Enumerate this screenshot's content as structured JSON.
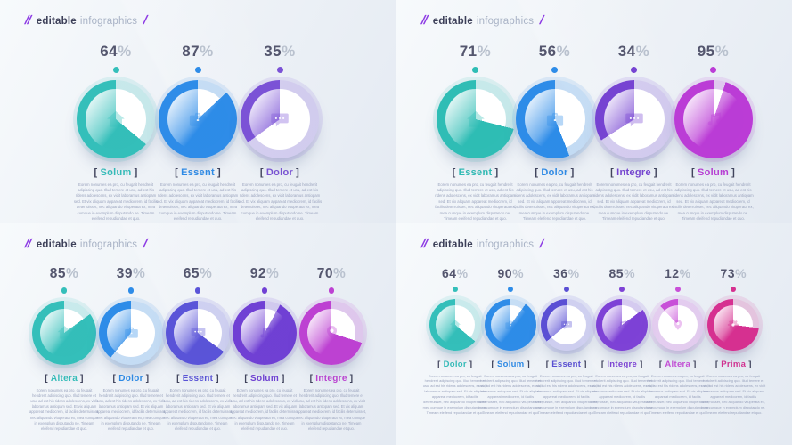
{
  "page": {
    "slash_decor_left": "//",
    "brand_bold": "editable",
    "brand_light": "infographics",
    "slash_decor_right": "/",
    "accent_purple": "#8d3be4",
    "background": "#edf1f7"
  },
  "percent_sign": "%",
  "bracket_open": "[",
  "bracket_close": "]",
  "body_placeholder": "Eorem nonumes ea pro, cu feugait hendrerit adipiscing quo. Illud temere et usu, ad est his ridens adolescens, ex vidit laboramus antiopam sed. Et vix aliquam appareat mediocrem, id facilis deterruisset, nec aliquando vituperata ex, mea cumque in exemplum disputando ne. Timeam eleifend repudiandae et quo.",
  "chart_data": [
    {
      "type": "donut",
      "position": "top-left",
      "title": "editable infographics",
      "unit": "%",
      "items": [
        {
          "label": "Solum",
          "value": 64,
          "color": "#34bfba",
          "icon": "home-icon"
        },
        {
          "label": "Essent",
          "value": 87,
          "color": "#2e8ce8",
          "icon": "briefcase-icon"
        },
        {
          "label": "Dolor",
          "value": 35,
          "color": "#7b52d6",
          "icon": "chat-icon"
        }
      ]
    },
    {
      "type": "donut",
      "position": "top-right",
      "title": "editable infographics",
      "unit": "%",
      "items": [
        {
          "label": "Essent",
          "value": 71,
          "color": "#2fbdb5",
          "icon": "home-icon"
        },
        {
          "label": "Dolor",
          "value": 56,
          "color": "#2e8ce8",
          "icon": "briefcase-icon"
        },
        {
          "label": "Integre",
          "value": 34,
          "color": "#7643d2",
          "icon": "chat-icon"
        },
        {
          "label": "Solum",
          "value": 95,
          "color": "#bb3cd6",
          "icon": "music-icon"
        }
      ]
    },
    {
      "type": "donut",
      "position": "bottom-left",
      "title": "editable infographics",
      "unit": "%",
      "items": [
        {
          "label": "Altera",
          "value": 85,
          "color": "#34bfba",
          "icon": "home-icon"
        },
        {
          "label": "Dolor",
          "value": 39,
          "color": "#2e8ce8",
          "icon": "briefcase-icon"
        },
        {
          "label": "Essent",
          "value": 65,
          "color": "#5a54d8",
          "icon": "chat-icon"
        },
        {
          "label": "Solum",
          "value": 92,
          "color": "#7040d4",
          "icon": "music-icon"
        },
        {
          "label": "Integre",
          "value": 70,
          "color": "#bd41d2",
          "icon": "pin-icon"
        }
      ]
    },
    {
      "type": "donut",
      "position": "bottom-right",
      "title": "editable infographics",
      "unit": "%",
      "items": [
        {
          "label": "Dolor",
          "value": 64,
          "color": "#34bfba",
          "icon": "home-icon"
        },
        {
          "label": "Solum",
          "value": 90,
          "color": "#2e8ce8",
          "icon": "briefcase-icon"
        },
        {
          "label": "Essent",
          "value": 36,
          "color": "#5a4fd4",
          "icon": "chat-icon"
        },
        {
          "label": "Integre",
          "value": 85,
          "color": "#7e42d6",
          "icon": "music-icon"
        },
        {
          "label": "Altera",
          "value": 12,
          "color": "#c84fd8",
          "icon": "pin-icon"
        },
        {
          "label": "Prima",
          "value": 73,
          "color": "#d63090",
          "icon": "gear-icon"
        }
      ]
    }
  ]
}
